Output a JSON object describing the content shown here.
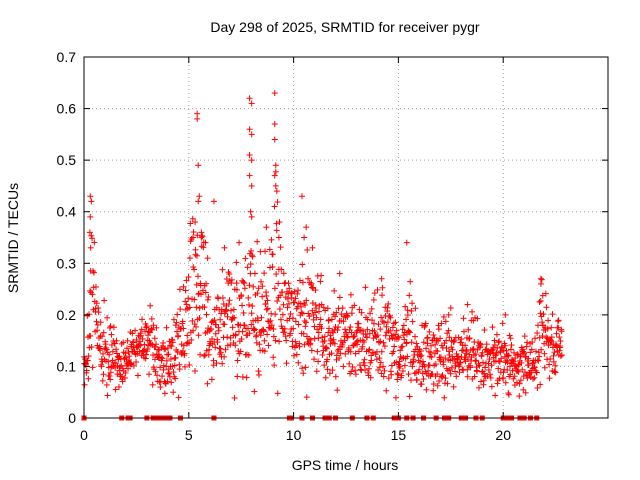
{
  "chart_data": {
    "type": "scatter",
    "title": "Day 298 of 2025, SRMTID for receiver pygr",
    "xlabel": "GPS time / hours",
    "ylabel": "SRMTID / TECUs",
    "xlim": [
      0,
      25
    ],
    "ylim": [
      0,
      0.7
    ],
    "xticks": [
      0,
      5,
      10,
      15,
      20
    ],
    "yticks": [
      0,
      0.1,
      0.2,
      0.3,
      0.4,
      0.5,
      0.6,
      0.7
    ],
    "xtick_labels": [
      "0",
      "5",
      "10",
      "15",
      "20"
    ],
    "ytick_labels": [
      "0",
      "0.1",
      "0.2",
      "0.3",
      "0.4",
      "0.5",
      "0.6",
      "0.7"
    ],
    "grid": true,
    "marker": "plus",
    "color": "#ff0000",
    "series": [
      {
        "name": "SRMTID",
        "profile": [
          [
            0.0,
            0.1,
            0.04
          ],
          [
            0.25,
            0.14,
            0.05
          ],
          [
            0.4,
            0.3,
            0.12
          ],
          [
            0.6,
            0.19,
            0.04
          ],
          [
            0.9,
            0.12,
            0.05
          ],
          [
            1.3,
            0.12,
            0.04
          ],
          [
            1.8,
            0.1,
            0.03
          ],
          [
            2.3,
            0.11,
            0.04
          ],
          [
            2.8,
            0.14,
            0.03
          ],
          [
            3.3,
            0.14,
            0.04
          ],
          [
            3.8,
            0.1,
            0.05
          ],
          [
            4.3,
            0.12,
            0.05
          ],
          [
            4.8,
            0.17,
            0.06
          ],
          [
            5.2,
            0.25,
            0.1
          ],
          [
            5.6,
            0.24,
            0.1
          ],
          [
            6.0,
            0.16,
            0.05
          ],
          [
            6.5,
            0.18,
            0.06
          ],
          [
            7.0,
            0.2,
            0.07
          ],
          [
            7.5,
            0.18,
            0.06
          ],
          [
            7.9,
            0.25,
            0.15
          ],
          [
            8.3,
            0.2,
            0.07
          ],
          [
            8.8,
            0.19,
            0.06
          ],
          [
            9.1,
            0.26,
            0.14
          ],
          [
            9.5,
            0.2,
            0.06
          ],
          [
            10.0,
            0.18,
            0.06
          ],
          [
            10.5,
            0.2,
            0.08
          ],
          [
            11.0,
            0.19,
            0.06
          ],
          [
            11.5,
            0.15,
            0.05
          ],
          [
            12.0,
            0.16,
            0.06
          ],
          [
            12.5,
            0.17,
            0.05
          ],
          [
            13.0,
            0.15,
            0.05
          ],
          [
            13.5,
            0.14,
            0.06
          ],
          [
            14.0,
            0.15,
            0.05
          ],
          [
            14.5,
            0.15,
            0.06
          ],
          [
            15.0,
            0.1,
            0.05
          ],
          [
            15.5,
            0.16,
            0.06
          ],
          [
            16.0,
            0.12,
            0.04
          ],
          [
            16.5,
            0.11,
            0.04
          ],
          [
            17.0,
            0.12,
            0.05
          ],
          [
            17.5,
            0.13,
            0.05
          ],
          [
            18.0,
            0.11,
            0.04
          ],
          [
            18.5,
            0.14,
            0.05
          ],
          [
            19.0,
            0.1,
            0.04
          ],
          [
            19.5,
            0.11,
            0.04
          ],
          [
            20.0,
            0.13,
            0.05
          ],
          [
            20.5,
            0.1,
            0.03
          ],
          [
            21.0,
            0.11,
            0.03
          ],
          [
            21.5,
            0.1,
            0.03
          ],
          [
            21.8,
            0.18,
            0.06
          ],
          [
            22.2,
            0.14,
            0.04
          ],
          [
            22.8,
            0.14,
            0.03
          ]
        ],
        "peaks": [
          [
            0.3,
            0.43
          ],
          [
            0.35,
            0.42
          ],
          [
            0.3,
            0.39
          ],
          [
            0.28,
            0.36
          ],
          [
            0.32,
            0.33
          ],
          [
            5.4,
            0.59
          ],
          [
            5.4,
            0.58
          ],
          [
            5.45,
            0.49
          ],
          [
            5.5,
            0.43
          ],
          [
            5.45,
            0.42
          ],
          [
            5.3,
            0.38
          ],
          [
            5.6,
            0.36
          ],
          [
            5.2,
            0.35
          ],
          [
            5.8,
            0.34
          ],
          [
            5.9,
            0.31
          ],
          [
            7.9,
            0.62
          ],
          [
            8.0,
            0.61
          ],
          [
            7.9,
            0.56
          ],
          [
            8.0,
            0.55
          ],
          [
            7.9,
            0.51
          ],
          [
            8.0,
            0.5
          ],
          [
            7.9,
            0.47
          ],
          [
            8.0,
            0.45
          ],
          [
            7.95,
            0.4
          ],
          [
            8.0,
            0.39
          ],
          [
            9.1,
            0.63
          ],
          [
            9.1,
            0.57
          ],
          [
            9.1,
            0.54
          ],
          [
            9.15,
            0.49
          ],
          [
            9.1,
            0.47
          ],
          [
            9.15,
            0.45
          ],
          [
            9.2,
            0.44
          ],
          [
            9.3,
            0.35
          ],
          [
            8.7,
            0.37
          ],
          [
            10.4,
            0.43
          ],
          [
            10.6,
            0.37
          ],
          [
            10.5,
            0.35
          ],
          [
            10.9,
            0.33
          ],
          [
            6.2,
            0.42
          ],
          [
            6.7,
            0.33
          ],
          [
            7.4,
            0.34
          ],
          [
            15.4,
            0.34
          ],
          [
            12.2,
            0.28
          ],
          [
            14.2,
            0.27
          ],
          [
            21.8,
            0.27
          ],
          [
            21.8,
            0.26
          ],
          [
            18.3,
            0.22
          ],
          [
            20.1,
            0.2
          ],
          [
            17.4,
            0.2
          ]
        ],
        "zero_values_at": [
          0.0,
          1.8,
          2.1,
          2.2,
          3.0,
          3.3,
          3.4,
          3.5,
          3.6,
          3.7,
          3.8,
          4.0,
          4.1,
          4.6,
          6.2,
          9.8,
          9.9,
          10.4,
          10.9,
          11.5,
          11.7,
          12.0,
          12.8,
          13.5,
          13.8,
          14.8,
          15.0,
          15.4,
          15.7,
          16.2,
          16.8,
          17.2,
          17.4,
          18.0,
          18.2,
          18.7,
          19.0,
          20.0,
          20.2,
          20.4,
          20.8,
          21.0,
          21.3,
          21.6
        ]
      }
    ]
  }
}
